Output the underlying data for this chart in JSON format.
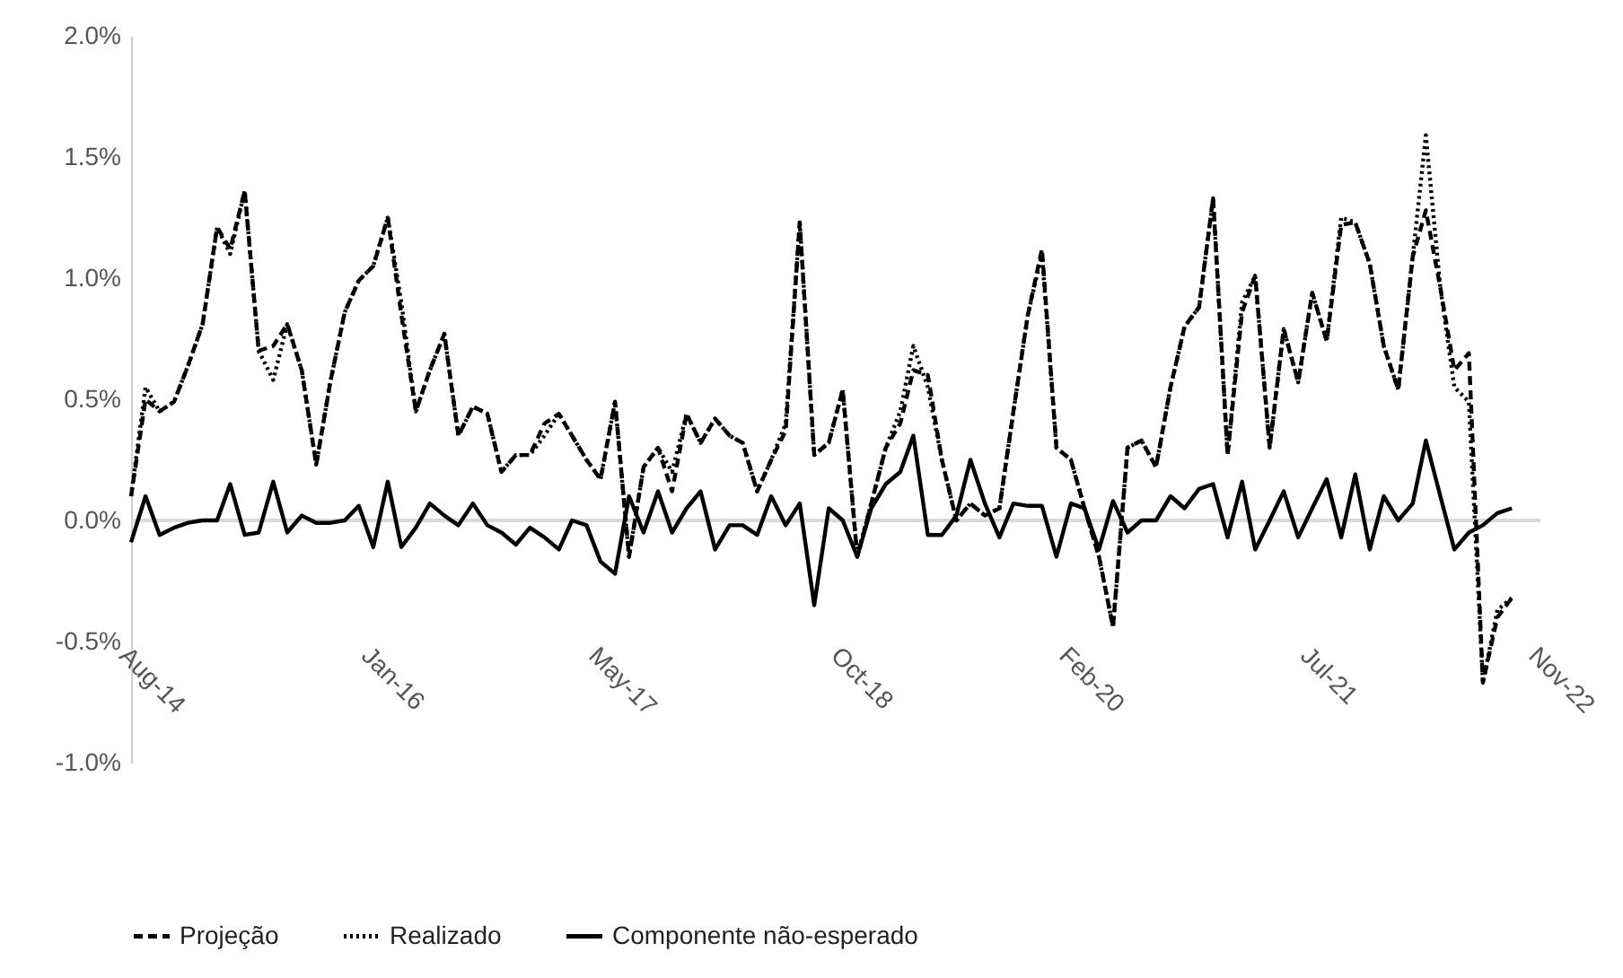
{
  "chart_data": {
    "type": "line",
    "x": [
      "2014-08",
      "2014-09",
      "2014-10",
      "2014-11",
      "2014-12",
      "2015-01",
      "2015-02",
      "2015-03",
      "2015-04",
      "2015-05",
      "2015-06",
      "2015-07",
      "2015-08",
      "2015-09",
      "2015-10",
      "2015-11",
      "2015-12",
      "2016-01",
      "2016-02",
      "2016-03",
      "2016-04",
      "2016-05",
      "2016-06",
      "2016-07",
      "2016-08",
      "2016-09",
      "2016-10",
      "2016-11",
      "2016-12",
      "2017-01",
      "2017-02",
      "2017-03",
      "2017-04",
      "2017-05",
      "2017-06",
      "2017-07",
      "2017-08",
      "2017-09",
      "2017-10",
      "2017-11",
      "2017-12",
      "2018-01",
      "2018-02",
      "2018-03",
      "2018-04",
      "2018-05",
      "2018-06",
      "2018-07",
      "2018-08",
      "2018-09",
      "2018-10",
      "2018-11",
      "2018-12",
      "2019-01",
      "2019-02",
      "2019-03",
      "2019-04",
      "2019-05",
      "2019-06",
      "2019-07",
      "2019-08",
      "2019-09",
      "2019-10",
      "2019-11",
      "2019-12",
      "2020-01",
      "2020-02",
      "2020-03",
      "2020-04",
      "2020-05",
      "2020-06",
      "2020-07",
      "2020-08",
      "2020-09",
      "2020-10",
      "2020-11",
      "2020-12",
      "2021-01",
      "2021-02",
      "2021-03",
      "2021-04",
      "2021-05",
      "2021-06",
      "2021-07",
      "2021-08",
      "2021-09",
      "2021-10",
      "2021-11",
      "2021-12",
      "2022-01",
      "2022-02",
      "2022-03",
      "2022-04",
      "2022-05",
      "2022-06",
      "2022-07",
      "2022-08",
      "2022-09"
    ],
    "series": [
      {
        "name": "Projeção",
        "color": "#000000",
        "line_style": "dashed",
        "values": [
          0.1,
          0.5,
          0.45,
          0.49,
          0.64,
          0.81,
          1.21,
          1.12,
          1.36,
          0.7,
          0.72,
          0.81,
          0.62,
          0.23,
          0.57,
          0.86,
          0.99,
          1.05,
          1.25,
          0.85,
          0.45,
          0.62,
          0.77,
          0.35,
          0.47,
          0.44,
          0.2,
          0.27,
          0.27,
          0.4,
          0.44,
          0.35,
          0.25,
          0.17,
          0.49,
          -0.15,
          0.22,
          0.3,
          0.12,
          0.44,
          0.32,
          0.42,
          0.35,
          0.32,
          0.12,
          0.25,
          0.37,
          1.23,
          0.27,
          0.32,
          0.54,
          -0.15,
          0.07,
          0.3,
          0.4,
          0.62,
          0.6,
          0.25,
          0.0,
          0.07,
          0.02,
          0.05,
          0.45,
          0.85,
          1.12,
          0.3,
          0.25,
          0.05,
          -0.15,
          -0.44,
          0.3,
          0.33,
          0.22,
          0.55,
          0.8,
          0.88,
          1.33,
          0.27,
          0.86,
          1.01,
          0.3,
          0.79,
          0.57,
          0.94,
          0.74,
          1.22,
          1.23,
          1.06,
          0.72,
          0.54,
          1.09,
          1.28,
          0.96,
          0.62,
          0.69,
          -0.67,
          -0.4,
          -0.32
        ]
      },
      {
        "name": "Realizado",
        "color": "#000000",
        "line_style": "dotted",
        "values": [
          0.1,
          0.55,
          0.45,
          0.49,
          0.64,
          0.81,
          1.21,
          1.1,
          1.36,
          0.7,
          0.58,
          0.81,
          0.62,
          0.23,
          0.57,
          0.86,
          0.99,
          1.05,
          1.25,
          0.9,
          0.45,
          0.62,
          0.77,
          0.35,
          0.47,
          0.44,
          0.2,
          0.27,
          0.27,
          0.35,
          0.44,
          0.35,
          0.25,
          0.17,
          0.49,
          -0.15,
          0.22,
          0.3,
          0.2,
          0.44,
          0.32,
          0.42,
          0.35,
          0.32,
          0.12,
          0.25,
          0.4,
          1.23,
          0.27,
          0.32,
          0.54,
          -0.15,
          0.07,
          0.3,
          0.45,
          0.72,
          0.55,
          0.25,
          0.0,
          0.07,
          0.02,
          0.05,
          0.45,
          0.85,
          1.1,
          0.3,
          0.25,
          0.05,
          -0.15,
          -0.44,
          0.3,
          0.33,
          0.22,
          0.55,
          0.8,
          0.88,
          1.33,
          0.27,
          0.9,
          1.01,
          0.3,
          0.79,
          0.57,
          0.94,
          0.74,
          1.25,
          1.23,
          1.06,
          0.72,
          0.54,
          1.09,
          1.59,
          0.96,
          0.55,
          0.49,
          -0.67,
          -0.37,
          -0.32
        ]
      },
      {
        "name": "Componente não-esperado",
        "color": "#000000",
        "line_style": "solid",
        "values": [
          -0.09,
          0.1,
          -0.06,
          -0.03,
          -0.01,
          0.0,
          0.0,
          0.15,
          -0.06,
          -0.05,
          0.16,
          -0.05,
          0.02,
          -0.01,
          -0.01,
          0.0,
          0.06,
          -0.11,
          0.16,
          -0.11,
          -0.03,
          0.07,
          0.02,
          -0.02,
          0.07,
          -0.02,
          -0.05,
          -0.1,
          -0.03,
          -0.07,
          -0.12,
          0.0,
          -0.02,
          -0.17,
          -0.22,
          0.1,
          -0.05,
          0.12,
          -0.05,
          0.05,
          0.12,
          -0.12,
          -0.02,
          -0.02,
          -0.06,
          0.1,
          -0.02,
          0.07,
          -0.35,
          0.05,
          0.0,
          -0.15,
          0.05,
          0.15,
          0.2,
          0.35,
          -0.06,
          -0.06,
          0.02,
          0.25,
          0.07,
          -0.07,
          0.07,
          0.06,
          0.06,
          -0.15,
          0.07,
          0.05,
          -0.12,
          0.08,
          -0.05,
          0.0,
          0.0,
          0.1,
          0.05,
          0.13,
          0.15,
          -0.07,
          0.16,
          -0.12,
          0.0,
          0.12,
          -0.07,
          0.05,
          0.17,
          -0.07,
          0.19,
          -0.12,
          0.1,
          0.0,
          0.07,
          0.33,
          0.1,
          -0.12,
          -0.05,
          -0.02,
          0.03,
          0.05
        ]
      }
    ],
    "xlim": [
      "2014-08",
      "2022-11"
    ],
    "xticks": [
      {
        "value": "2014-08",
        "label": "Aug-14"
      },
      {
        "value": "2016-01",
        "label": "Jan-16"
      },
      {
        "value": "2017-05",
        "label": "May-17"
      },
      {
        "value": "2018-10",
        "label": "Oct-18"
      },
      {
        "value": "2020-02",
        "label": "Feb-20"
      },
      {
        "value": "2021-07",
        "label": "Jul-21"
      },
      {
        "value": "2022-11",
        "label": "Nov-22"
      }
    ],
    "ylim": [
      -1.0,
      2.0
    ],
    "yticks": [
      {
        "value": -1.0,
        "label": "-1.0%"
      },
      {
        "value": -0.5,
        "label": "-0.5%"
      },
      {
        "value": 0,
        "label": "0.0%"
      },
      {
        "value": 0.5,
        "label": "0.5%"
      },
      {
        "value": 1.0,
        "label": "1.0%"
      },
      {
        "value": 1.5,
        "label": "1.5%"
      },
      {
        "value": 2.0,
        "label": "2.0%"
      }
    ],
    "ref_lines": [
      {
        "axis": "y",
        "value": 0,
        "color": "#d9d9d9",
        "line_style": "solid"
      }
    ],
    "grid": false,
    "legend": "bottom",
    "marker": "none"
  }
}
